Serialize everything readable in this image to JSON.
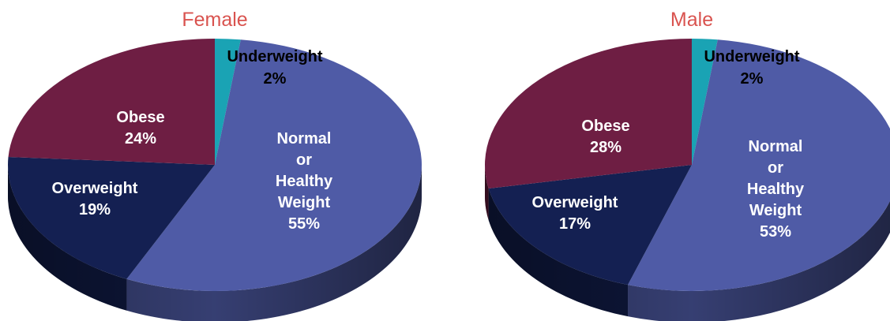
{
  "chart_data": [
    {
      "type": "pie",
      "title": "Female",
      "categories": [
        "Underweight",
        "Normal or Healthy Weight",
        "Overweight",
        "Obese"
      ],
      "values": [
        2,
        55,
        19,
        24
      ],
      "labels": [
        "2%",
        "55%",
        "19%",
        "24%"
      ],
      "colors": [
        "#1aa3b4",
        "#4f5ba6",
        "#142052",
        "#6e1e43"
      ]
    },
    {
      "type": "pie",
      "title": "Male",
      "categories": [
        "Underweight",
        "Normal or Healthy Weight",
        "Overweight",
        "Obese"
      ],
      "values": [
        2,
        53,
        17,
        28
      ],
      "labels": [
        "2%",
        "53%",
        "17%",
        "28%"
      ],
      "colors": [
        "#1aa3b4",
        "#4f5ba6",
        "#142052",
        "#6e1e43"
      ]
    }
  ],
  "colors": {
    "title": "#d9534f",
    "underweight": "#1aa3b4",
    "normal": "#4f5ba6",
    "overweight": "#142052",
    "obese": "#6e1e43"
  }
}
